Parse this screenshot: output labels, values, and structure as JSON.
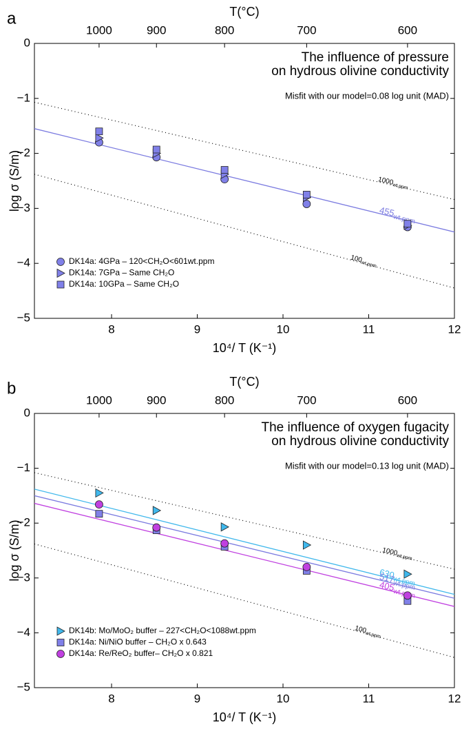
{
  "chart_data": [
    {
      "type": "scatter",
      "panel_label": "a",
      "title_lines": [
        "The influence of pressure",
        "on hydrous olivine conductivity"
      ],
      "annotation": "Misfit with our model=0.08 log unit (MAD)",
      "xlabel": "10⁴/ T (K⁻¹)",
      "ylabel": "log σ (S/m)",
      "x2label": "T(°C)",
      "xlim": [
        7.1,
        12
      ],
      "ylim": [
        -5,
        0
      ],
      "xticks": [
        8,
        9,
        10,
        11,
        12
      ],
      "yticks": [
        {
          "value": -5,
          "label": "−5"
        },
        {
          "value": -4,
          "label": "−4"
        },
        {
          "value": -3,
          "label": "−3"
        },
        {
          "value": -2,
          "label": "−2"
        },
        {
          "value": -1,
          "label": "−1"
        },
        0
      ],
      "x2ticks": [
        {
          "value": 7.8544,
          "label": "1000"
        },
        {
          "value": 8.5238,
          "label": "900"
        },
        {
          "value": 9.3183,
          "label": "800"
        },
        {
          "value": 10.276,
          "label": "700"
        },
        {
          "value": 11.4528,
          "label": "600"
        }
      ],
      "x": [
        7.8544,
        8.5238,
        9.3183,
        10.276,
        11.4528
      ],
      "legend": "lower left",
      "series": [
        {
          "name": "DK14a: 4GPa – 120<CH₂O<601wt.ppm",
          "marker": "circle",
          "color": "#8080e8",
          "values": [
            -1.8,
            -2.07,
            -2.47,
            -2.92,
            -3.34
          ]
        },
        {
          "name": "DK14a: 7GPa – Same CH₂O",
          "marker": "triangle",
          "color": "#8080e8",
          "values": [
            -1.72,
            -2.0,
            -2.38,
            -2.8,
            -3.31
          ]
        },
        {
          "name": "DK14a: 10GPa – Same CH₂O",
          "marker": "square",
          "color": "#8080e8",
          "values": [
            -1.6,
            -1.93,
            -2.3,
            -2.75,
            -3.28
          ]
        }
      ],
      "lines": [
        {
          "label": "1000",
          "unit": "wt.ppm",
          "style": "dotted",
          "color": "#000000",
          "x": [
            7.1,
            12
          ],
          "values": [
            -1.07,
            -2.84
          ]
        },
        {
          "label": "455",
          "unit": "wt.ppm",
          "style": "solid",
          "color": "#7b7be0",
          "x": [
            7.1,
            12
          ],
          "values": [
            -1.55,
            -3.43
          ]
        },
        {
          "label": "100",
          "unit": "wt.ppm",
          "style": "dotted",
          "color": "#000000",
          "x": [
            7.1,
            12
          ],
          "values": [
            -2.38,
            -4.45
          ]
        }
      ]
    },
    {
      "type": "scatter",
      "panel_label": "b",
      "title_lines": [
        "The influence of oxygen fugacity",
        "on hydrous olivine conductivity"
      ],
      "annotation": "Misfit with our model=0.13 log unit (MAD)",
      "xlabel": "10⁴/ T (K⁻¹)",
      "ylabel": "log σ (S/m)",
      "x2label": "T(°C)",
      "xlim": [
        7.1,
        12
      ],
      "ylim": [
        -5,
        0
      ],
      "xticks": [
        8,
        9,
        10,
        11,
        12
      ],
      "yticks": [
        {
          "value": -5,
          "label": "−5"
        },
        {
          "value": -4,
          "label": "−4"
        },
        {
          "value": -3,
          "label": "−3"
        },
        {
          "value": -2,
          "label": "−2"
        },
        {
          "value": -1,
          "label": "−1"
        },
        0
      ],
      "x2ticks": [
        {
          "value": 7.8544,
          "label": "1000"
        },
        {
          "value": 8.5238,
          "label": "900"
        },
        {
          "value": 9.3183,
          "label": "800"
        },
        {
          "value": 10.276,
          "label": "700"
        },
        {
          "value": 11.4528,
          "label": "600"
        }
      ],
      "x": [
        7.8544,
        8.5238,
        9.3183,
        10.276,
        11.4528
      ],
      "legend": "lower left",
      "series": [
        {
          "name": "DK14b: Mo/MoO₂ buffer – 227<CH₂O<1088wt.ppm",
          "marker": "triangle",
          "color": "#40b8ec",
          "values": [
            -1.45,
            -1.77,
            -2.07,
            -2.4,
            -2.93
          ]
        },
        {
          "name": "DK14a: Ni/NiO buffer – CH₂O x 0.643",
          "marker": "square",
          "color": "#8080e8",
          "values": [
            -1.83,
            -2.13,
            -2.43,
            -2.87,
            -3.42
          ]
        },
        {
          "name": "DK14a: Re/ReO₂ buffer– CH₂O x 0.821",
          "marker": "circle",
          "color": "#c040e0",
          "values": [
            -1.66,
            -2.08,
            -2.37,
            -2.8,
            -3.32
          ]
        }
      ],
      "lines": [
        {
          "label": "1000",
          "unit": "wt.ppm",
          "style": "dotted",
          "color": "#000000",
          "x": [
            7.1,
            12
          ],
          "values": [
            -1.08,
            -2.84
          ]
        },
        {
          "label": "630",
          "unit": "wt.ppm",
          "style": "solid",
          "color": "#40b8ec",
          "x": [
            7.1,
            12
          ],
          "values": [
            -1.38,
            -3.3
          ]
        },
        {
          "label": "517",
          "unit": "wt.ppm",
          "style": "solid",
          "color": "#7b7be0",
          "x": [
            7.1,
            12
          ],
          "values": [
            -1.5,
            -3.37
          ]
        },
        {
          "label": "405",
          "unit": "wt.ppm",
          "style": "solid",
          "color": "#c040e0",
          "x": [
            7.1,
            12
          ],
          "values": [
            -1.64,
            -3.52
          ]
        },
        {
          "label": "100",
          "unit": "wt.ppm",
          "style": "dotted",
          "color": "#000000",
          "x": [
            7.1,
            12
          ],
          "values": [
            -2.38,
            -4.45
          ]
        }
      ]
    }
  ]
}
